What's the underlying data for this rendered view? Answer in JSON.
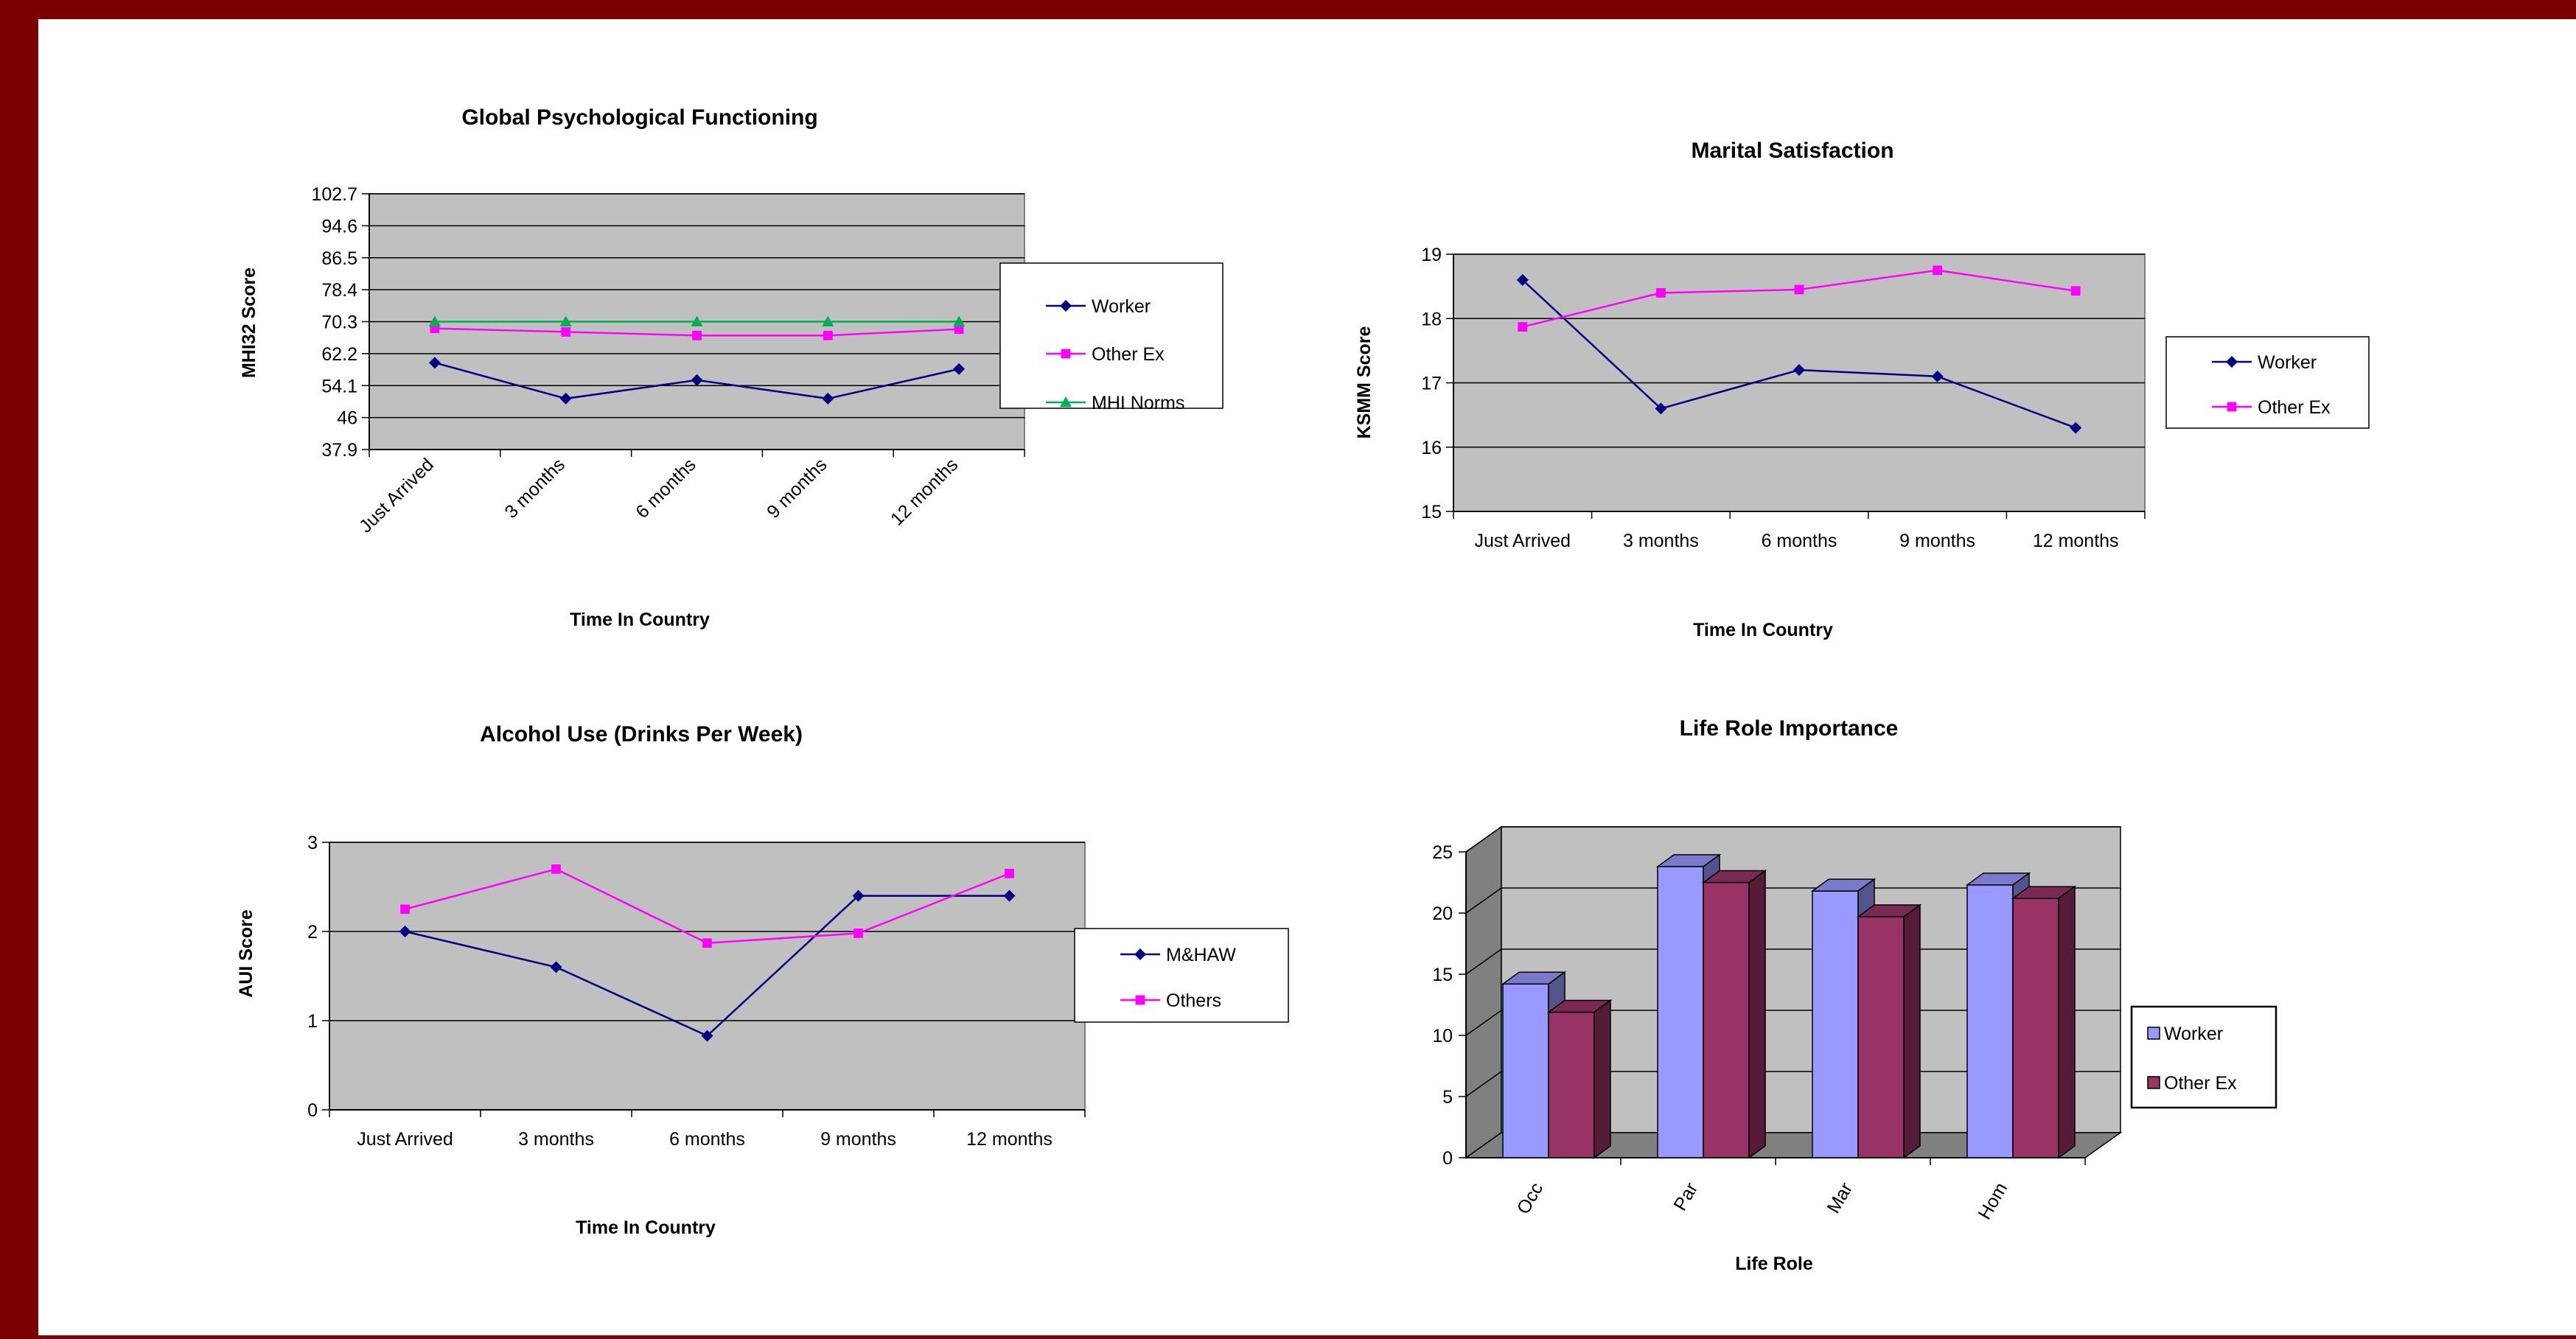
{
  "chart_data": [
    {
      "type": "line",
      "title": "Global Psychological Functioning",
      "xlabel": "Time In Country",
      "ylabel": "MHI32 Score",
      "categories": [
        "Just Arrived",
        "3 months",
        "6 months",
        "9 months",
        "12 months"
      ],
      "yticks": [
        "37.9",
        "46",
        "54.1",
        "62.2",
        "70.3",
        "78.4",
        "86.5",
        "94.6",
        "102.7"
      ],
      "ylim": [
        37.9,
        102.7
      ],
      "series": [
        {
          "name": "Worker",
          "values": [
            59.9,
            50.8,
            55.5,
            50.8,
            58.3
          ],
          "color": "#000080",
          "marker": "diamond"
        },
        {
          "name": "Other Ex",
          "values": [
            68.6,
            67.7,
            66.8,
            66.8,
            68.4
          ],
          "color": "#ff00ff",
          "marker": "square"
        },
        {
          "name": "MHI Norms",
          "values": [
            70.3,
            70.3,
            70.3,
            70.3,
            70.3
          ],
          "color": "#00b050",
          "marker": "triangle"
        }
      ],
      "grid": true,
      "legend": "right"
    },
    {
      "type": "line",
      "title": "Marital Satisfaction",
      "xlabel": "Time In Country",
      "ylabel": "KSMM Score",
      "categories": [
        "Just Arrived",
        "3 months",
        "6 months",
        "9 months",
        "12 months"
      ],
      "yticks": [
        "15",
        "16",
        "17",
        "18",
        "19"
      ],
      "ylim": [
        15,
        19
      ],
      "series": [
        {
          "name": "Worker",
          "values": [
            18.6,
            16.6,
            17.2,
            17.1,
            16.3
          ],
          "color": "#000080",
          "marker": "diamond"
        },
        {
          "name": "Other Ex",
          "values": [
            17.87,
            18.4,
            18.45,
            18.75,
            18.43
          ],
          "color": "#ff00ff",
          "marker": "square"
        }
      ],
      "grid": true,
      "legend": "right"
    },
    {
      "type": "line",
      "title": "Alcohol Use (Drinks Per Week)",
      "xlabel": "Time In Country",
      "ylabel": "AUI Score",
      "categories": [
        "Just Arrived",
        "3 months",
        "6 months",
        "9 months",
        "12 months"
      ],
      "yticks": [
        "0",
        "1",
        "2",
        "3"
      ],
      "ylim": [
        0,
        3
      ],
      "series": [
        {
          "name": "M&HAW",
          "values": [
            2.0,
            1.6,
            0.83,
            2.4,
            2.4
          ],
          "color": "#000080",
          "marker": "diamond"
        },
        {
          "name": "Others",
          "values": [
            2.25,
            2.7,
            1.87,
            1.98,
            2.65
          ],
          "color": "#ff00ff",
          "marker": "square"
        }
      ],
      "grid": true,
      "legend": "right"
    },
    {
      "type": "bar",
      "title": "Life Role Importance",
      "xlabel": "Life Role",
      "ylabel": "",
      "categories": [
        "Occ",
        "Par",
        "Mar",
        "Hom"
      ],
      "yticks": [
        "0",
        "5",
        "10",
        "15",
        "20",
        "25"
      ],
      "ylim": [
        0,
        25
      ],
      "series": [
        {
          "name": "Worker",
          "values": [
            14.2,
            23.8,
            21.8,
            22.3
          ],
          "color": "#9999ff"
        },
        {
          "name": "Other Ex",
          "values": [
            11.9,
            22.5,
            19.7,
            21.2
          ],
          "color": "#993366"
        }
      ],
      "grid": true,
      "legend": "right"
    }
  ]
}
